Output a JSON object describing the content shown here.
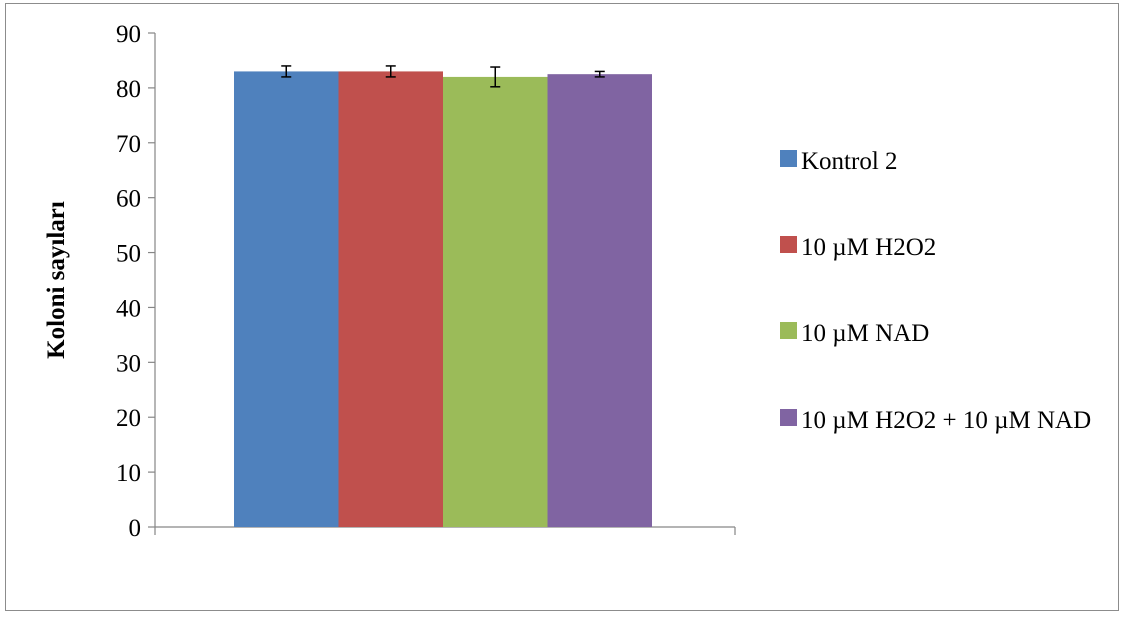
{
  "chart_data": {
    "type": "bar",
    "title": "",
    "xlabel": "",
    "ylabel": "Koloni sayıları",
    "ylim": [
      0,
      90
    ],
    "yticks": [
      0,
      10,
      20,
      30,
      40,
      50,
      60,
      70,
      80,
      90
    ],
    "categories": [
      ""
    ],
    "series": [
      {
        "name": "Kontrol 2",
        "values": [
          83
        ],
        "error": [
          1.0
        ],
        "color": "#4f81bd"
      },
      {
        "name": "10 µM H2O2",
        "values": [
          83
        ],
        "error": [
          1.0
        ],
        "color": "#c0504d"
      },
      {
        "name": "10 µM NAD",
        "values": [
          82
        ],
        "error": [
          1.8
        ],
        "color": "#9bbb59"
      },
      {
        "name": "10 µM H2O2 + 10 µM NAD",
        "values": [
          82.5
        ],
        "error": [
          0.5
        ],
        "color": "#8064a2"
      }
    ],
    "grid": false,
    "legend_position": "right"
  }
}
